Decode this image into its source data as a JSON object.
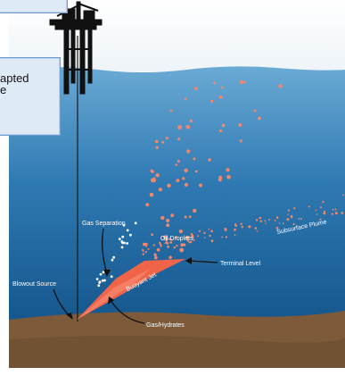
{
  "diagram": {
    "labels": {
      "gas_separation": "Gas Separation",
      "oil_droplets": "Oil Droplets",
      "subsurface_plume": "Subsurface Plume",
      "terminal_level": "Terminal Level",
      "buoyant_jet": "Buoyant Jet",
      "blowout_source": "Blowout Source",
      "gas_hydrates": "Gas/Hydrates"
    },
    "colors": {
      "ocean_top": "#5fa3cf",
      "ocean_bottom": "#185a8e",
      "seabed": "#7c5a3a",
      "oil": "#f0644a",
      "droplet": "#f3866b",
      "gas": "#ffffff"
    }
  },
  "callout": {
    "line1": "apted",
    "line2": "e"
  }
}
